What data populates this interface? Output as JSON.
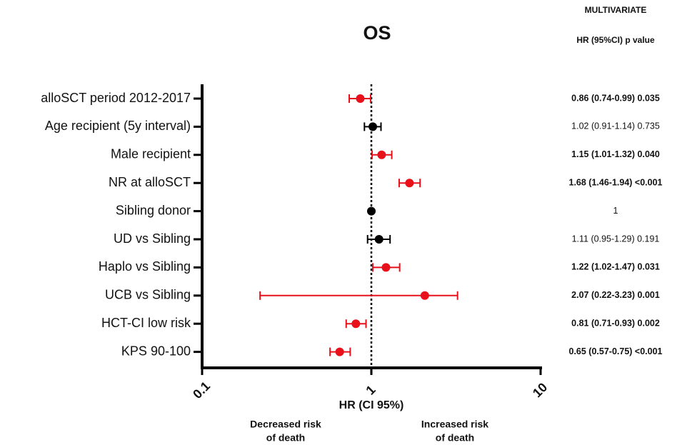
{
  "chart_data": {
    "type": "forest",
    "title": "OS",
    "header": [
      "MULTIVARIATE",
      "HR (95%CI) p value"
    ],
    "categories": [
      "alloSCT period 2012-2017",
      "Age recipient (5y interval)",
      "Male recipient",
      "NR at alloSCT",
      "Sibling donor",
      "UD vs Sibling",
      "Haplo vs Sibling",
      "UCB vs Sibling",
      "HCT-CI low risk",
      "KPS 90-100"
    ],
    "values": [
      0.86,
      1.02,
      1.15,
      1.68,
      1,
      1.11,
      1.22,
      2.07,
      0.81,
      0.65
    ],
    "lower": [
      0.74,
      0.91,
      1.01,
      1.46,
      null,
      0.95,
      1.02,
      0.22,
      0.71,
      0.57
    ],
    "upper": [
      0.99,
      1.14,
      1.32,
      1.94,
      null,
      1.29,
      1.47,
      3.23,
      0.93,
      0.75
    ],
    "value_labels": [
      "0.86 (0.74-0.99) 0.035",
      "1.02 (0.91-1.14) 0.735",
      "1.15 (1.01-1.32) 0.040",
      "1.68 (1.46-1.94) <0.001",
      "1",
      "1.11 (0.95-1.29) 0.191",
      "1.22 (1.02-1.47) 0.031",
      "2.07 (0.22-3.23) 0.001",
      "0.81 (0.71-0.93) 0.002",
      "0.65 (0.57-0.75) <0.001"
    ],
    "colors": [
      "#e8101a",
      "#000000",
      "#e8101a",
      "#e8101a",
      "#000000",
      "#000000",
      "#e8101a",
      "#e8101a",
      "#e8101a",
      "#e8101a"
    ],
    "xlim": [
      0.1,
      10
    ],
    "xticks": [
      0.1,
      1,
      10
    ],
    "log_x": true,
    "reference_line": 1,
    "xlabel": "HR (CI 95%)",
    "left_note": [
      "Decreased risk",
      "of death"
    ],
    "right_note": [
      "Increased risk",
      "of death"
    ]
  }
}
